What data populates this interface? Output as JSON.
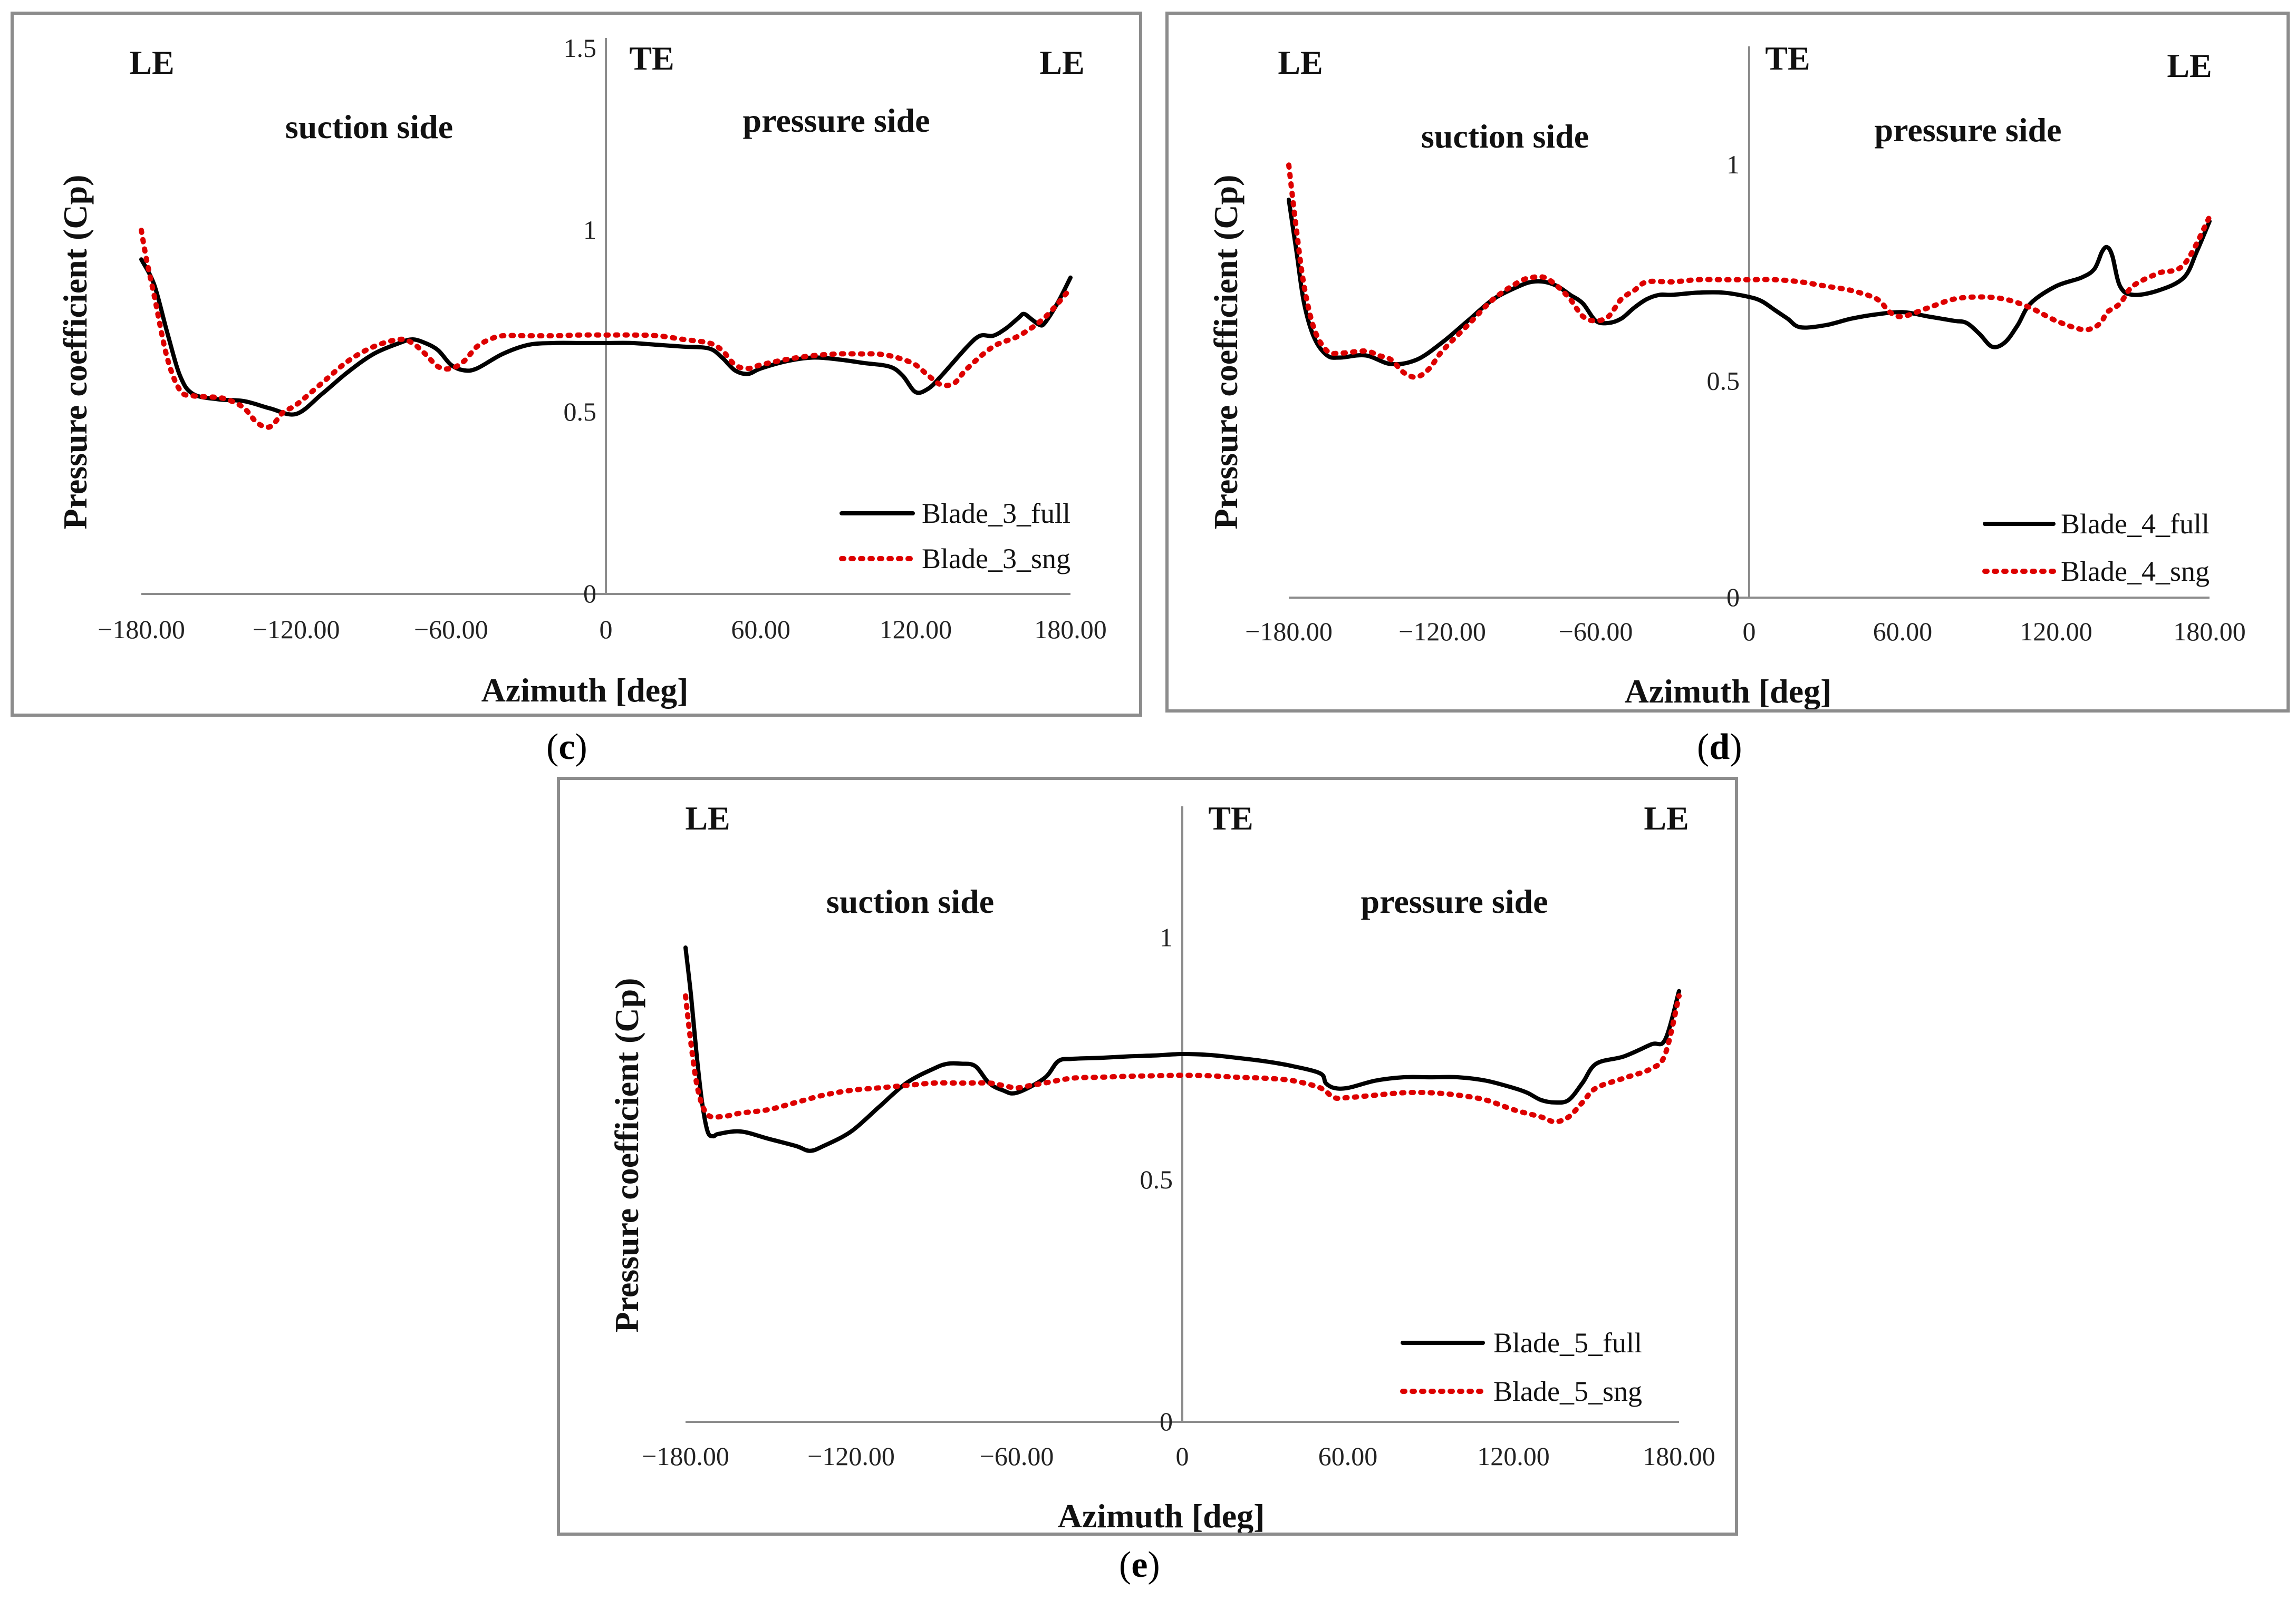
{
  "chart_data": [
    {
      "id": "c",
      "type": "line",
      "caption": "c",
      "xlabel": "Azimuth [deg]",
      "ylabel": "Pressure coefficient (Cp)",
      "xlim": [
        -180,
        180
      ],
      "ylim": [
        0,
        1.5
      ],
      "x_ticks": [
        "−180.00",
        "−120.00",
        "−60.00",
        "0",
        "60.00",
        "120.00",
        "180.00"
      ],
      "y_ticks": [
        {
          "value": 0,
          "label": "0"
        },
        {
          "value": 0.5,
          "label": "0.5"
        },
        {
          "value": 1,
          "label": "1"
        },
        {
          "value": 1.5,
          "label": "1.5"
        }
      ],
      "annotations": {
        "le_left": "LE",
        "te": "TE",
        "le_right": "LE",
        "suction": "suction side",
        "pressure": "pressure side"
      },
      "series": [
        {
          "name": "Blade_3_full",
          "style": "solid",
          "color": "#000000",
          "x": [
            -180,
            -175,
            -170,
            -165,
            -160,
            -150,
            -140,
            -130,
            -120,
            -110,
            -100,
            -90,
            -80,
            -75,
            -70,
            -65,
            -60,
            -55,
            -50,
            -40,
            -30,
            -20,
            -10,
            0,
            10,
            20,
            30,
            40,
            45,
            50,
            55,
            60,
            70,
            80,
            90,
            100,
            110,
            115,
            120,
            125,
            130,
            140,
            145,
            150,
            155,
            160,
            162,
            165,
            168,
            170,
            175,
            180
          ],
          "y": [
            0.92,
            0.85,
            0.72,
            0.6,
            0.55,
            0.535,
            0.53,
            0.51,
            0.495,
            0.55,
            0.61,
            0.66,
            0.69,
            0.7,
            0.69,
            0.67,
            0.63,
            0.615,
            0.62,
            0.66,
            0.685,
            0.69,
            0.69,
            0.69,
            0.69,
            0.685,
            0.68,
            0.675,
            0.65,
            0.615,
            0.605,
            0.62,
            0.64,
            0.65,
            0.645,
            0.635,
            0.625,
            0.6,
            0.555,
            0.565,
            0.6,
            0.68,
            0.71,
            0.71,
            0.73,
            0.76,
            0.77,
            0.755,
            0.74,
            0.745,
            0.8,
            0.87
          ]
        },
        {
          "name": "Blade_3_sng",
          "style": "dotted",
          "color": "#dd0000",
          "x": [
            -180,
            -178,
            -175,
            -170,
            -165,
            -160,
            -150,
            -145,
            -140,
            -135,
            -130,
            -125,
            -120,
            -110,
            -100,
            -90,
            -80,
            -75,
            -70,
            -65,
            -60,
            -55,
            -50,
            -45,
            -40,
            -30,
            -20,
            -10,
            0,
            10,
            20,
            30,
            40,
            45,
            50,
            55,
            60,
            70,
            80,
            90,
            100,
            105,
            110,
            115,
            120,
            125,
            130,
            135,
            140,
            150,
            160,
            170,
            180
          ],
          "y": [
            1.0,
            0.92,
            0.82,
            0.65,
            0.56,
            0.545,
            0.54,
            0.53,
            0.51,
            0.47,
            0.46,
            0.5,
            0.52,
            0.58,
            0.64,
            0.68,
            0.7,
            0.69,
            0.66,
            0.625,
            0.62,
            0.64,
            0.68,
            0.7,
            0.71,
            0.71,
            0.71,
            0.712,
            0.712,
            0.712,
            0.71,
            0.7,
            0.69,
            0.67,
            0.63,
            0.62,
            0.63,
            0.645,
            0.655,
            0.66,
            0.66,
            0.66,
            0.655,
            0.645,
            0.63,
            0.6,
            0.575,
            0.58,
            0.62,
            0.68,
            0.71,
            0.76,
            0.84
          ]
        }
      ]
    },
    {
      "id": "d",
      "type": "line",
      "caption": "d",
      "xlabel": "Azimuth [deg]",
      "ylabel": "Pressure coefficient (Cp)",
      "xlim": [
        -180,
        180
      ],
      "ylim": [
        0,
        1.25
      ],
      "x_ticks": [
        "−180.00",
        "−120.00",
        "−60.00",
        "0",
        "60.00",
        "120.00",
        "180.00"
      ],
      "y_ticks": [
        {
          "value": 0,
          "label": "0"
        },
        {
          "value": 0.5,
          "label": "0.5"
        },
        {
          "value": 1,
          "label": "1"
        }
      ],
      "annotations": {
        "le_left": "LE",
        "te": "TE",
        "le_right": "LE",
        "suction": "suction side",
        "pressure": "pressure side"
      },
      "series": [
        {
          "name": "Blade_4_full",
          "style": "solid",
          "color": "#000000",
          "x": [
            -180,
            -177,
            -174,
            -170,
            -165,
            -160,
            -150,
            -140,
            -130,
            -120,
            -110,
            -100,
            -90,
            -85,
            -80,
            -75,
            -70,
            -65,
            -60,
            -55,
            -50,
            -45,
            -40,
            -35,
            -30,
            -20,
            -10,
            0,
            5,
            10,
            15,
            20,
            30,
            40,
            50,
            60,
            70,
            80,
            85,
            90,
            95,
            100,
            105,
            110,
            120,
            130,
            135,
            138,
            140,
            142,
            145,
            150,
            160,
            170,
            175,
            180
          ],
          "y": [
            0.92,
            0.8,
            0.68,
            0.6,
            0.56,
            0.555,
            0.56,
            0.54,
            0.55,
            0.59,
            0.64,
            0.69,
            0.72,
            0.73,
            0.73,
            0.72,
            0.7,
            0.68,
            0.64,
            0.635,
            0.645,
            0.67,
            0.69,
            0.7,
            0.7,
            0.705,
            0.705,
            0.695,
            0.685,
            0.665,
            0.645,
            0.625,
            0.63,
            0.645,
            0.655,
            0.66,
            0.65,
            0.64,
            0.635,
            0.61,
            0.58,
            0.59,
            0.63,
            0.68,
            0.72,
            0.74,
            0.76,
            0.8,
            0.81,
            0.79,
            0.72,
            0.7,
            0.71,
            0.74,
            0.8,
            0.87
          ]
        },
        {
          "name": "Blade_4_sng",
          "style": "dotted",
          "color": "#dd0000",
          "x": [
            -180,
            -177,
            -174,
            -170,
            -165,
            -160,
            -150,
            -145,
            -140,
            -135,
            -130,
            -125,
            -120,
            -110,
            -100,
            -90,
            -85,
            -80,
            -75,
            -70,
            -65,
            -60,
            -55,
            -50,
            -45,
            -40,
            -30,
            -20,
            -10,
            0,
            10,
            20,
            30,
            40,
            50,
            55,
            60,
            70,
            80,
            90,
            100,
            110,
            120,
            130,
            135,
            138,
            140,
            145,
            150,
            160,
            170,
            180
          ],
          "y": [
            1.0,
            0.85,
            0.72,
            0.62,
            0.57,
            0.565,
            0.57,
            0.56,
            0.55,
            0.52,
            0.51,
            0.53,
            0.57,
            0.63,
            0.69,
            0.73,
            0.74,
            0.74,
            0.72,
            0.69,
            0.65,
            0.64,
            0.65,
            0.69,
            0.71,
            0.73,
            0.73,
            0.735,
            0.735,
            0.735,
            0.735,
            0.73,
            0.72,
            0.71,
            0.69,
            0.66,
            0.65,
            0.67,
            0.69,
            0.695,
            0.69,
            0.67,
            0.64,
            0.62,
            0.625,
            0.64,
            0.66,
            0.68,
            0.72,
            0.75,
            0.77,
            0.88
          ]
        }
      ]
    },
    {
      "id": "e",
      "type": "line",
      "caption": "e",
      "xlabel": "Azimuth [deg]",
      "ylabel": "Pressure coefficient (Cp)",
      "xlim": [
        -180,
        180
      ],
      "ylim": [
        0,
        1.25
      ],
      "x_ticks": [
        "−180.00",
        "−120.00",
        "−60.00",
        "0",
        "60.00",
        "120.00",
        "180.00"
      ],
      "y_ticks": [
        {
          "value": 0,
          "label": "0"
        },
        {
          "value": 0.5,
          "label": "0.5"
        },
        {
          "value": 1,
          "label": "1"
        }
      ],
      "annotations": {
        "le_left": "LE",
        "te": "TE",
        "le_right": "LE",
        "suction": "suction side",
        "pressure": "pressure side"
      },
      "series": [
        {
          "name": "Blade_5_full",
          "style": "solid",
          "color": "#000000",
          "x": [
            -180,
            -178,
            -176,
            -174,
            -172,
            -170,
            -168,
            -160,
            -150,
            -140,
            -135,
            -130,
            -120,
            -110,
            -100,
            -90,
            -85,
            -80,
            -75,
            -70,
            -65,
            -60,
            -50,
            -45,
            -40,
            -30,
            -20,
            -10,
            0,
            10,
            20,
            30,
            40,
            50,
            52,
            55,
            60,
            70,
            80,
            90,
            100,
            110,
            120,
            125,
            130,
            135,
            140,
            145,
            150,
            160,
            170,
            175,
            180
          ],
          "y": [
            0.98,
            0.88,
            0.76,
            0.66,
            0.6,
            0.59,
            0.595,
            0.6,
            0.585,
            0.57,
            0.56,
            0.57,
            0.6,
            0.65,
            0.7,
            0.73,
            0.74,
            0.74,
            0.735,
            0.7,
            0.685,
            0.68,
            0.71,
            0.745,
            0.75,
            0.752,
            0.755,
            0.757,
            0.76,
            0.758,
            0.752,
            0.745,
            0.735,
            0.72,
            0.7,
            0.69,
            0.69,
            0.705,
            0.712,
            0.712,
            0.712,
            0.705,
            0.69,
            0.68,
            0.665,
            0.66,
            0.665,
            0.7,
            0.74,
            0.755,
            0.78,
            0.79,
            0.89
          ]
        },
        {
          "name": "Blade_5_sng",
          "style": "dotted",
          "color": "#dd0000",
          "x": [
            -180,
            -178,
            -176,
            -174,
            -172,
            -170,
            -165,
            -160,
            -150,
            -140,
            -130,
            -120,
            -110,
            -100,
            -90,
            -80,
            -70,
            -65,
            -60,
            -55,
            -50,
            -40,
            -30,
            -20,
            -10,
            0,
            10,
            20,
            30,
            40,
            50,
            55,
            60,
            70,
            80,
            90,
            100,
            110,
            120,
            130,
            135,
            140,
            145,
            150,
            160,
            170,
            175,
            180
          ],
          "y": [
            0.88,
            0.78,
            0.7,
            0.655,
            0.635,
            0.63,
            0.632,
            0.638,
            0.645,
            0.66,
            0.675,
            0.685,
            0.69,
            0.695,
            0.7,
            0.7,
            0.7,
            0.695,
            0.69,
            0.695,
            0.7,
            0.71,
            0.712,
            0.714,
            0.715,
            0.716,
            0.715,
            0.712,
            0.71,
            0.705,
            0.69,
            0.67,
            0.67,
            0.675,
            0.68,
            0.68,
            0.675,
            0.665,
            0.645,
            0.63,
            0.62,
            0.63,
            0.66,
            0.69,
            0.71,
            0.73,
            0.76,
            0.88
          ]
        }
      ]
    }
  ]
}
